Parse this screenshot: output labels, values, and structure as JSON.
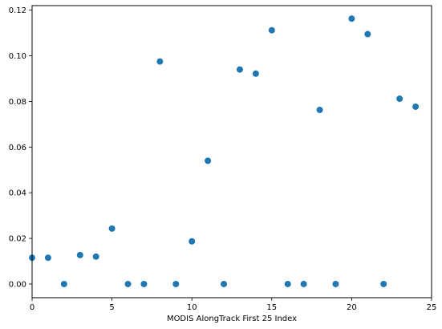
{
  "chart_data": {
    "type": "scatter",
    "title": "",
    "xlabel": "MODIS AlongTrack First 25 Index",
    "ylabel": "",
    "xlim": [
      0,
      25
    ],
    "ylim": [
      -0.006,
      0.122
    ],
    "xticks": [
      0,
      5,
      10,
      15,
      20,
      25
    ],
    "yticks": [
      0.0,
      0.02,
      0.04,
      0.06,
      0.08,
      0.1,
      0.12
    ],
    "ytick_labels": [
      "0.00",
      "0.02",
      "0.04",
      "0.06",
      "0.08",
      "0.10",
      "0.12"
    ],
    "grid": false,
    "marker_color": "#1f77b4",
    "points": [
      {
        "x": 0,
        "y": 0.0115
      },
      {
        "x": 1,
        "y": 0.0115
      },
      {
        "x": 2,
        "y": 0.0
      },
      {
        "x": 3,
        "y": 0.0127
      },
      {
        "x": 4,
        "y": 0.012
      },
      {
        "x": 5,
        "y": 0.0243
      },
      {
        "x": 6,
        "y": 0.0
      },
      {
        "x": 7,
        "y": 0.0
      },
      {
        "x": 8,
        "y": 0.0975
      },
      {
        "x": 9,
        "y": 0.0
      },
      {
        "x": 10,
        "y": 0.0187
      },
      {
        "x": 11,
        "y": 0.054
      },
      {
        "x": 12,
        "y": 0.0
      },
      {
        "x": 13,
        "y": 0.094
      },
      {
        "x": 14,
        "y": 0.0922
      },
      {
        "x": 15,
        "y": 0.1112
      },
      {
        "x": 16,
        "y": 0.0
      },
      {
        "x": 17,
        "y": 0.0
      },
      {
        "x": 18,
        "y": 0.0763
      },
      {
        "x": 19,
        "y": 0.0
      },
      {
        "x": 20,
        "y": 0.1163
      },
      {
        "x": 21,
        "y": 0.1095
      },
      {
        "x": 22,
        "y": 0.0
      },
      {
        "x": 23,
        "y": 0.0812
      },
      {
        "x": 24,
        "y": 0.0777
      }
    ]
  }
}
